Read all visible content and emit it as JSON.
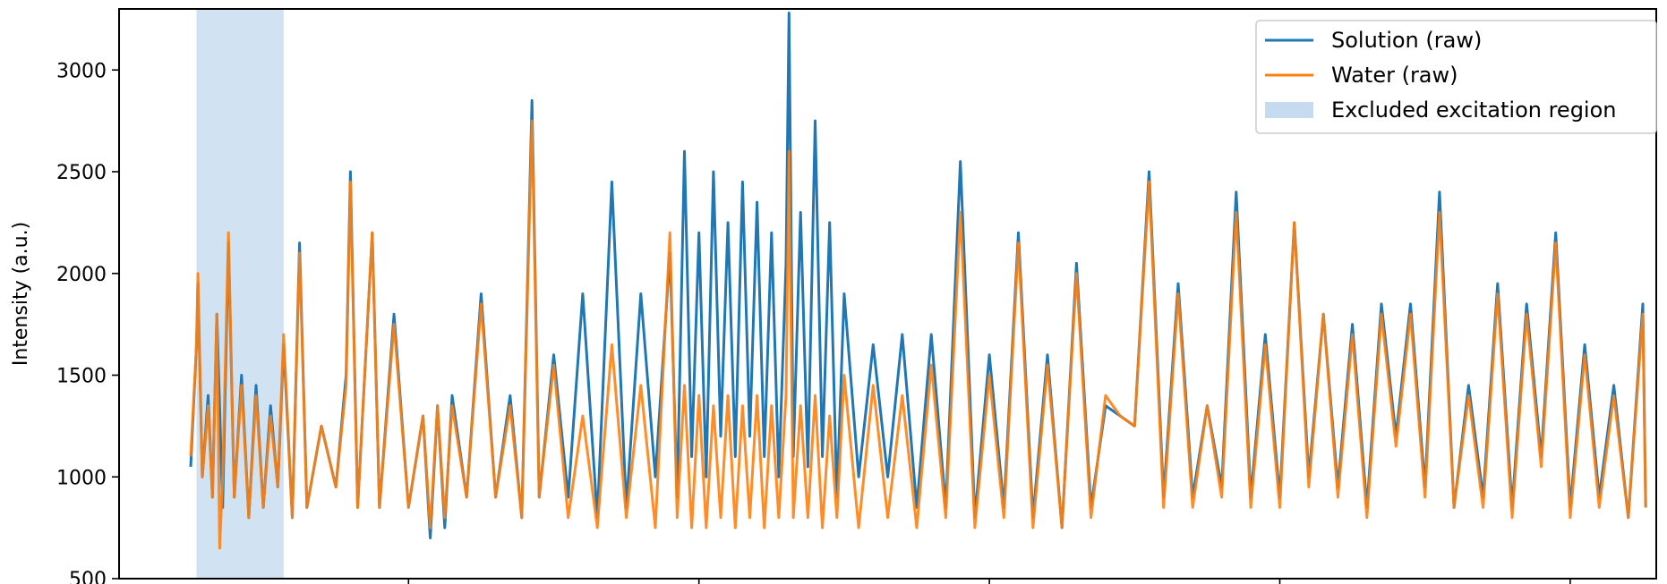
{
  "chart_data": {
    "type": "line",
    "ylabel": "Intensity (a.u.)",
    "xlabel": "",
    "ylim": [
      500,
      3300
    ],
    "xlim": [
      0,
      1000
    ],
    "x_ticks_at": [
      150,
      350,
      550,
      750,
      950
    ],
    "yticks": [
      "500",
      "1000",
      "1500",
      "2000",
      "2500",
      "3000"
    ],
    "ytick_values": [
      500,
      1000,
      1500,
      2000,
      2500,
      3000
    ],
    "legend_position": "top-right",
    "excluded_region": {
      "label": "Excluded excitation region",
      "x_start": 4,
      "x_end": 64,
      "color": "#c6dbef"
    },
    "series": [
      {
        "name": "Solution (raw)",
        "color": "#1f77b4",
        "points": [
          [
            0,
            1050
          ],
          [
            4,
            1650
          ],
          [
            5,
            1950
          ],
          [
            8,
            1000
          ],
          [
            12,
            1400
          ],
          [
            15,
            900
          ],
          [
            18,
            1800
          ],
          [
            22,
            850
          ],
          [
            26,
            2150
          ],
          [
            30,
            900
          ],
          [
            35,
            1500
          ],
          [
            40,
            800
          ],
          [
            45,
            1450
          ],
          [
            50,
            850
          ],
          [
            55,
            1350
          ],
          [
            60,
            950
          ],
          [
            64,
            1650
          ],
          [
            70,
            800
          ],
          [
            75,
            2150
          ],
          [
            80,
            850
          ],
          [
            90,
            1250
          ],
          [
            100,
            950
          ],
          [
            107,
            1500
          ],
          [
            110,
            2500
          ],
          [
            115,
            850
          ],
          [
            125,
            2200
          ],
          [
            130,
            850
          ],
          [
            140,
            1800
          ],
          [
            150,
            850
          ],
          [
            160,
            1300
          ],
          [
            165,
            700
          ],
          [
            170,
            1350
          ],
          [
            175,
            750
          ],
          [
            180,
            1400
          ],
          [
            190,
            900
          ],
          [
            200,
            1900
          ],
          [
            210,
            900
          ],
          [
            220,
            1400
          ],
          [
            228,
            800
          ],
          [
            235,
            2850
          ],
          [
            240,
            900
          ],
          [
            250,
            1600
          ],
          [
            260,
            900
          ],
          [
            270,
            1900
          ],
          [
            280,
            800
          ],
          [
            290,
            2450
          ],
          [
            300,
            850
          ],
          [
            310,
            1900
          ],
          [
            320,
            1000
          ],
          [
            330,
            2100
          ],
          [
            335,
            900
          ],
          [
            340,
            2600
          ],
          [
            345,
            1100
          ],
          [
            350,
            2200
          ],
          [
            355,
            1000
          ],
          [
            360,
            2500
          ],
          [
            365,
            1200
          ],
          [
            370,
            2250
          ],
          [
            375,
            1100
          ],
          [
            380,
            2450
          ],
          [
            385,
            1200
          ],
          [
            390,
            2350
          ],
          [
            395,
            1100
          ],
          [
            400,
            2200
          ],
          [
            405,
            1000
          ],
          [
            410,
            2050
          ],
          [
            412,
            3280
          ],
          [
            415,
            1100
          ],
          [
            420,
            2300
          ],
          [
            425,
            1050
          ],
          [
            430,
            2750
          ],
          [
            435,
            1100
          ],
          [
            440,
            2250
          ],
          [
            445,
            900
          ],
          [
            450,
            1900
          ],
          [
            460,
            1000
          ],
          [
            470,
            1650
          ],
          [
            480,
            1000
          ],
          [
            490,
            1700
          ],
          [
            500,
            850
          ],
          [
            510,
            1700
          ],
          [
            520,
            850
          ],
          [
            530,
            2550
          ],
          [
            540,
            800
          ],
          [
            550,
            1600
          ],
          [
            560,
            850
          ],
          [
            570,
            2200
          ],
          [
            580,
            800
          ],
          [
            590,
            1600
          ],
          [
            600,
            750
          ],
          [
            610,
            2050
          ],
          [
            620,
            850
          ],
          [
            630,
            1350
          ],
          [
            640,
            1300
          ],
          [
            650,
            1250
          ],
          [
            660,
            2500
          ],
          [
            670,
            900
          ],
          [
            680,
            1950
          ],
          [
            690,
            900
          ],
          [
            700,
            1350
          ],
          [
            710,
            950
          ],
          [
            720,
            2400
          ],
          [
            730,
            900
          ],
          [
            740,
            1700
          ],
          [
            750,
            900
          ],
          [
            760,
            2250
          ],
          [
            770,
            1000
          ],
          [
            780,
            1800
          ],
          [
            790,
            950
          ],
          [
            800,
            1750
          ],
          [
            810,
            850
          ],
          [
            820,
            1850
          ],
          [
            830,
            1200
          ],
          [
            840,
            1850
          ],
          [
            850,
            950
          ],
          [
            860,
            2400
          ],
          [
            870,
            850
          ],
          [
            880,
            1450
          ],
          [
            890,
            900
          ],
          [
            900,
            1950
          ],
          [
            910,
            850
          ],
          [
            920,
            1850
          ],
          [
            930,
            1100
          ],
          [
            940,
            2200
          ],
          [
            950,
            850
          ],
          [
            960,
            1650
          ],
          [
            970,
            900
          ],
          [
            980,
            1450
          ],
          [
            990,
            800
          ],
          [
            1000,
            1850
          ],
          [
            1002,
            850
          ]
        ]
      },
      {
        "name": "Water (raw)",
        "color": "#ff7f0e",
        "points": [
          [
            0,
            1100
          ],
          [
            4,
            1650
          ],
          [
            5,
            2000
          ],
          [
            8,
            1000
          ],
          [
            12,
            1350
          ],
          [
            15,
            900
          ],
          [
            18,
            1800
          ],
          [
            20,
            650
          ],
          [
            22,
            1000
          ],
          [
            26,
            2200
          ],
          [
            30,
            900
          ],
          [
            35,
            1450
          ],
          [
            40,
            800
          ],
          [
            45,
            1400
          ],
          [
            50,
            850
          ],
          [
            55,
            1300
          ],
          [
            60,
            950
          ],
          [
            64,
            1700
          ],
          [
            70,
            800
          ],
          [
            75,
            2100
          ],
          [
            80,
            850
          ],
          [
            90,
            1250
          ],
          [
            100,
            950
          ],
          [
            107,
            1450
          ],
          [
            110,
            2450
          ],
          [
            115,
            850
          ],
          [
            125,
            2200
          ],
          [
            130,
            850
          ],
          [
            140,
            1750
          ],
          [
            150,
            850
          ],
          [
            160,
            1300
          ],
          [
            165,
            750
          ],
          [
            170,
            1350
          ],
          [
            175,
            800
          ],
          [
            180,
            1350
          ],
          [
            190,
            900
          ],
          [
            200,
            1850
          ],
          [
            210,
            900
          ],
          [
            220,
            1350
          ],
          [
            228,
            800
          ],
          [
            235,
            2750
          ],
          [
            240,
            900
          ],
          [
            250,
            1550
          ],
          [
            260,
            800
          ],
          [
            270,
            1300
          ],
          [
            280,
            750
          ],
          [
            290,
            1650
          ],
          [
            300,
            800
          ],
          [
            310,
            1450
          ],
          [
            320,
            750
          ],
          [
            330,
            2200
          ],
          [
            335,
            800
          ],
          [
            340,
            1450
          ],
          [
            345,
            750
          ],
          [
            350,
            1400
          ],
          [
            355,
            750
          ],
          [
            360,
            1350
          ],
          [
            365,
            800
          ],
          [
            370,
            1400
          ],
          [
            375,
            750
          ],
          [
            380,
            1350
          ],
          [
            385,
            800
          ],
          [
            390,
            1400
          ],
          [
            395,
            750
          ],
          [
            400,
            1350
          ],
          [
            405,
            800
          ],
          [
            410,
            1400
          ],
          [
            412,
            2600
          ],
          [
            415,
            800
          ],
          [
            420,
            1350
          ],
          [
            425,
            800
          ],
          [
            430,
            1400
          ],
          [
            435,
            750
          ],
          [
            440,
            1300
          ],
          [
            445,
            800
          ],
          [
            450,
            1500
          ],
          [
            460,
            750
          ],
          [
            470,
            1450
          ],
          [
            480,
            800
          ],
          [
            490,
            1400
          ],
          [
            500,
            750
          ],
          [
            510,
            1550
          ],
          [
            520,
            800
          ],
          [
            530,
            2300
          ],
          [
            540,
            750
          ],
          [
            550,
            1500
          ],
          [
            560,
            800
          ],
          [
            570,
            2150
          ],
          [
            580,
            750
          ],
          [
            590,
            1550
          ],
          [
            600,
            750
          ],
          [
            610,
            2000
          ],
          [
            620,
            800
          ],
          [
            630,
            1400
          ],
          [
            640,
            1300
          ],
          [
            650,
            1250
          ],
          [
            660,
            2450
          ],
          [
            670,
            850
          ],
          [
            680,
            1900
          ],
          [
            690,
            850
          ],
          [
            700,
            1350
          ],
          [
            710,
            900
          ],
          [
            720,
            2300
          ],
          [
            730,
            850
          ],
          [
            740,
            1650
          ],
          [
            750,
            850
          ],
          [
            760,
            2250
          ],
          [
            770,
            950
          ],
          [
            780,
            1800
          ],
          [
            790,
            900
          ],
          [
            800,
            1700
          ],
          [
            810,
            800
          ],
          [
            820,
            1800
          ],
          [
            830,
            1150
          ],
          [
            840,
            1800
          ],
          [
            850,
            900
          ],
          [
            860,
            2300
          ],
          [
            870,
            850
          ],
          [
            880,
            1400
          ],
          [
            890,
            850
          ],
          [
            900,
            1900
          ],
          [
            910,
            800
          ],
          [
            920,
            1800
          ],
          [
            930,
            1050
          ],
          [
            940,
            2150
          ],
          [
            950,
            800
          ],
          [
            960,
            1600
          ],
          [
            970,
            850
          ],
          [
            980,
            1400
          ],
          [
            990,
            800
          ],
          [
            1000,
            1800
          ],
          [
            1002,
            850
          ]
        ]
      }
    ]
  }
}
